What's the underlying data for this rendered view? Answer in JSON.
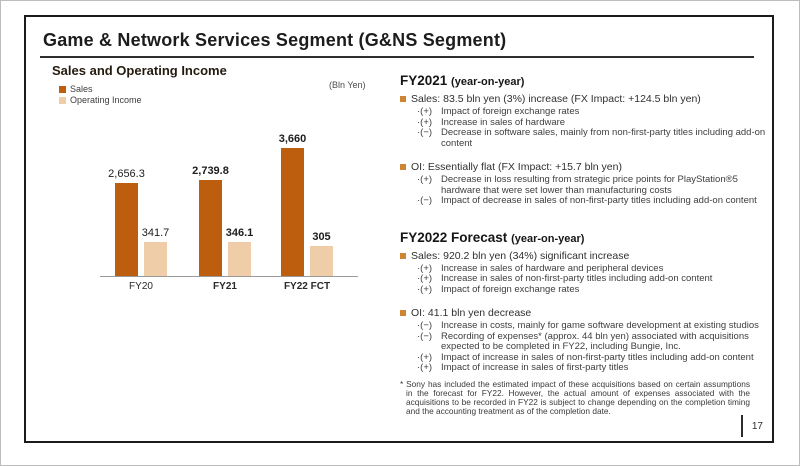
{
  "slide": {
    "title": "Game & Network Services Segment (G&NS Segment)"
  },
  "page": {
    "number": "17"
  },
  "chart": {
    "title": "Sales and Operating Income",
    "unit_label": "(Bln Yen)",
    "legend": [
      {
        "label": "Sales",
        "color": "#BC5E0D"
      },
      {
        "label": "Operating Income",
        "color": "#F0CDA9"
      }
    ]
  },
  "chart_data": {
    "type": "bar",
    "title": "Sales and Operating Income",
    "ylabel": "(Bln Yen)",
    "categories": [
      "FY20",
      "FY21",
      "FY22 FCT"
    ],
    "category_emphasis": [
      false,
      true,
      true
    ],
    "series": [
      {
        "name": "Sales",
        "values": [
          2656.3,
          2739.8,
          3660
        ],
        "labels": [
          "2,656.3",
          "2,739.8",
          "3,660"
        ],
        "color": "#BC5E0D"
      },
      {
        "name": "Operating Income",
        "values": [
          341.7,
          346.1,
          305
        ],
        "labels": [
          "341.7",
          "346.1",
          "305"
        ],
        "color": "#F0CDA9"
      }
    ],
    "legend_position": "top-left",
    "grid": false,
    "note": "Sales and Operating Income bars are drawn at different vertical scales"
  },
  "colors": {
    "bullet_square": "#CE8433",
    "sales": "#BC5E0D",
    "operating_income": "#F0CDA9"
  },
  "sections": [
    {
      "heading_main": "FY2021",
      "heading_sub": "(year-on-year)",
      "bullets": [
        {
          "text": "Sales: 83.5 bln yen (3%) increase (FX Impact: +124.5 bln yen)",
          "subs": [
            {
              "prefix": "·(+)",
              "text": "Impact of foreign exchange rates"
            },
            {
              "prefix": "·(+)",
              "text": "Increase in sales of hardware"
            },
            {
              "prefix": "·(−)",
              "text": "Decrease in software sales, mainly from non-first-party titles including add-on content"
            }
          ]
        },
        {
          "text": "OI:  Essentially flat (FX Impact: +15.7 bln yen)",
          "subs": [
            {
              "prefix": "·(+)",
              "text": "Decrease in loss resulting from strategic price points for PlayStation®5 hardware that were set lower than manufacturing costs"
            },
            {
              "prefix": "·(−)",
              "text": "Impact of decrease in sales of non-first-party titles including add-on content"
            }
          ]
        }
      ]
    },
    {
      "heading_main": "FY2022 Forecast",
      "heading_sub": "(year-on-year)",
      "bullets": [
        {
          "text": "Sales: 920.2 bln yen (34%) significant increase",
          "subs": [
            {
              "prefix": "·(+)",
              "text": "Increase in sales of hardware and peripheral devices"
            },
            {
              "prefix": "·(+)",
              "text": "Increase in sales of non-first-party titles including add-on content"
            },
            {
              "prefix": "·(+)",
              "text": "Impact of foreign exchange rates"
            }
          ]
        },
        {
          "text": "OI: 41.1 bln yen decrease",
          "subs": [
            {
              "prefix": "·(−)",
              "text": "Increase in costs, mainly for game software development at existing studios"
            },
            {
              "prefix": "·(−)",
              "text": "Recording of expenses* (approx. 44 bln yen) associated with acquisitions expected to be completed in FY22, including Bungie, Inc."
            },
            {
              "prefix": "·(+)",
              "text": "Impact of increase in sales of non-first-party titles including add-on content"
            },
            {
              "prefix": "·(+)",
              "text": "Impact of increase in sales of first-party titles"
            }
          ]
        }
      ]
    }
  ],
  "footnote": "* Sony has included the estimated impact of these acquisitions based on certain assumptions in the forecast for FY22. However, the actual amount of expenses associated with the acquisitions to be recorded in FY22 is subject to change depending on the completion timing and the accounting treatment as of the completion date."
}
